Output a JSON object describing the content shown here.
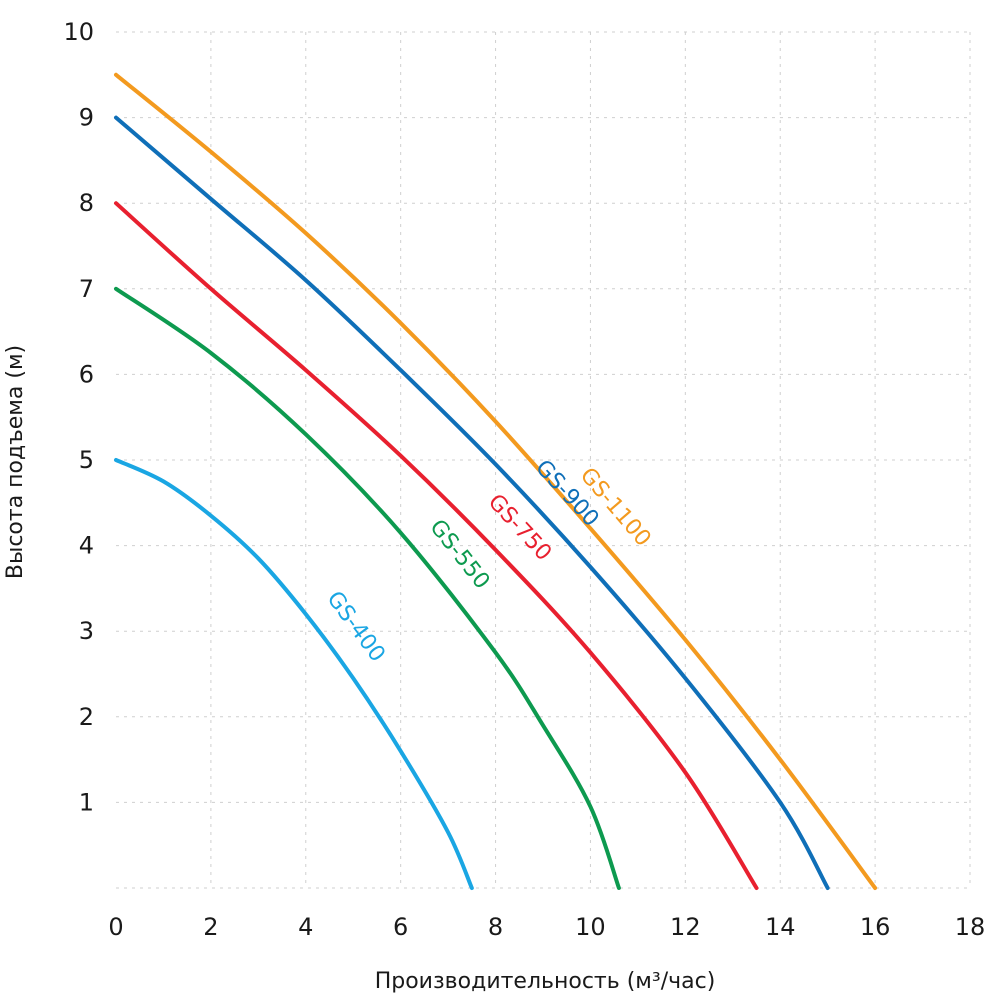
{
  "chart_data": {
    "type": "line",
    "xlabel": "Производительность (м³/час)",
    "ylabel": "Высота подъема (м)",
    "xlim": [
      0,
      18
    ],
    "ylim": [
      0,
      10
    ],
    "x_ticks": [
      0,
      2,
      4,
      6,
      8,
      10,
      12,
      14,
      16,
      18
    ],
    "y_ticks": [
      1,
      2,
      3,
      4,
      5,
      6,
      7,
      8,
      9,
      10
    ],
    "grid": true,
    "legend": "inline labels on curves",
    "series": [
      {
        "name": "GS-400",
        "color": "#1aa6e3",
        "x": [
          0,
          1,
          2,
          3,
          4,
          5,
          6,
          7,
          7.5
        ],
        "y": [
          5.0,
          4.75,
          4.35,
          3.85,
          3.2,
          2.45,
          1.6,
          0.65,
          0.0
        ]
      },
      {
        "name": "GS-550",
        "color": "#0d9a4f",
        "x": [
          0,
          2,
          4,
          6,
          8,
          9,
          10,
          10.6
        ],
        "y": [
          7.0,
          6.25,
          5.3,
          4.15,
          2.75,
          1.9,
          0.95,
          0.0
        ]
      },
      {
        "name": "GS-750",
        "color": "#e8202f",
        "x": [
          0,
          2,
          4,
          6,
          8,
          10,
          12,
          13.5
        ],
        "y": [
          8.0,
          7.0,
          6.05,
          5.05,
          3.95,
          2.75,
          1.35,
          0.0
        ]
      },
      {
        "name": "GS-900",
        "color": "#0f6fb8",
        "x": [
          0,
          2,
          4,
          6,
          8,
          10,
          12,
          14,
          15
        ],
        "y": [
          9.0,
          8.05,
          7.1,
          6.05,
          4.95,
          3.75,
          2.45,
          1.0,
          0.0
        ]
      },
      {
        "name": "GS-1100",
        "color": "#f39a1f",
        "x": [
          0,
          2,
          4,
          6,
          8,
          10,
          12,
          14,
          16
        ],
        "y": [
          9.5,
          8.6,
          7.65,
          6.6,
          5.45,
          4.2,
          2.9,
          1.5,
          0.0
        ]
      }
    ]
  }
}
